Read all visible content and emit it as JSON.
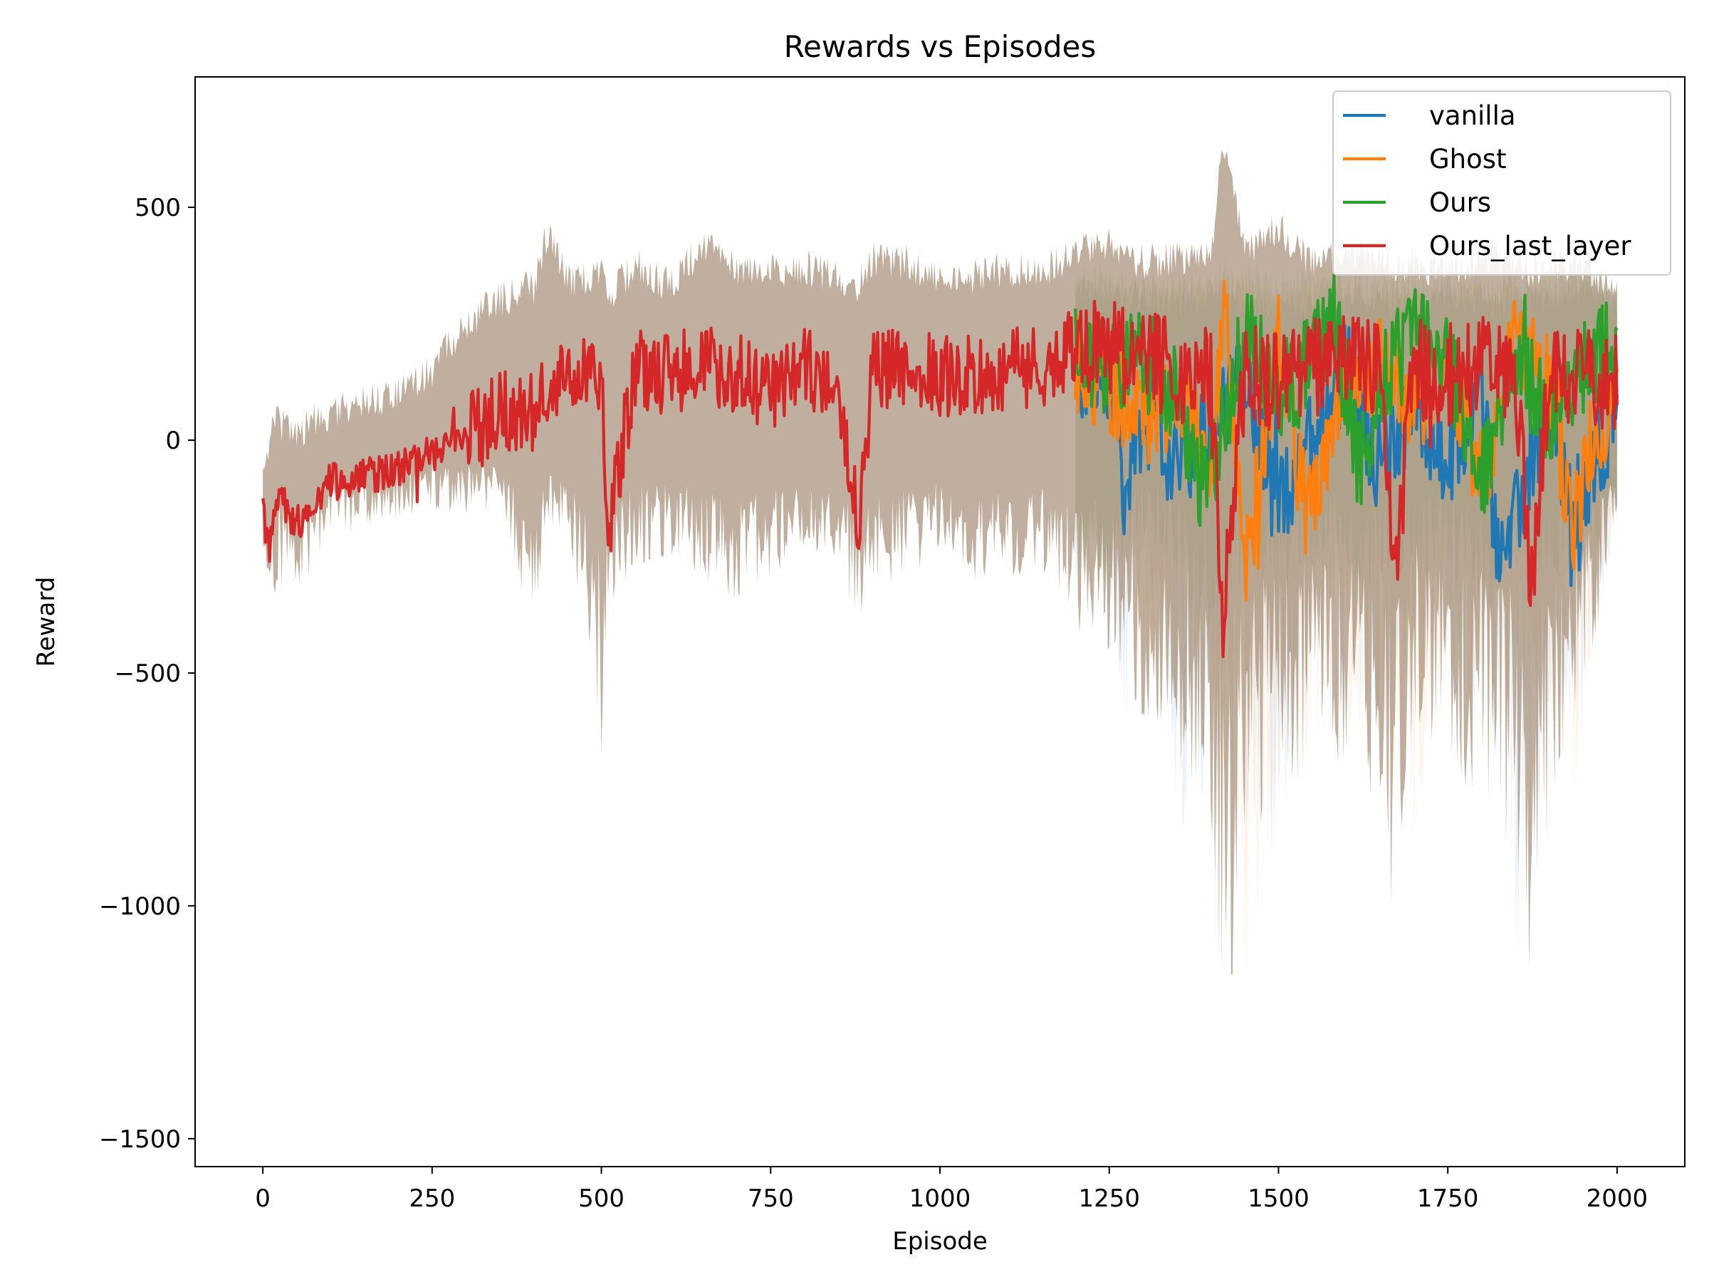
{
  "chart_data": {
    "type": "line",
    "title": "Rewards vs Episodes",
    "xlabel": "Episode",
    "ylabel": "Reward",
    "xlim": [
      -100,
      2100
    ],
    "ylim": [
      -1560,
      780
    ],
    "xticks": [
      0,
      250,
      500,
      750,
      1000,
      1250,
      1500,
      1750,
      2000
    ],
    "xtick_labels": [
      "0",
      "250",
      "500",
      "750",
      "1000",
      "1250",
      "1500",
      "1750",
      "2000"
    ],
    "yticks": [
      500,
      0,
      -500,
      -1000,
      -1500
    ],
    "ytick_labels": [
      "500",
      "0",
      "−500",
      "−1000",
      "−1500"
    ],
    "grid": false,
    "legend_position": "top-right",
    "series": [
      {
        "name": "vanilla",
        "color": "#1f77b4",
        "x": [
          1200,
          1260,
          1270,
          1300,
          1350,
          1400,
          1450,
          1500,
          1550,
          1600,
          1650,
          1700,
          1750,
          1800,
          1820,
          1840,
          1860,
          1900,
          1940,
          1960,
          2000
        ],
        "mean": [
          140,
          110,
          -130,
          60,
          -60,
          30,
          120,
          -150,
          20,
          160,
          -60,
          90,
          -80,
          130,
          -190,
          -240,
          -120,
          100,
          -220,
          -50,
          60
        ],
        "band_low": [
          -300,
          -400,
          -740,
          -300,
          -800,
          -1000,
          -900,
          -900,
          -500,
          -600,
          -700,
          -500,
          -600,
          -700,
          -800,
          -900,
          -1250,
          -600,
          -800,
          -500,
          -200
        ],
        "band_high": [
          320,
          330,
          300,
          310,
          300,
          320,
          290,
          280,
          300,
          310,
          300,
          290,
          320,
          300,
          290,
          310,
          300,
          300,
          320,
          340,
          300
        ]
      },
      {
        "name": "Ghost",
        "color": "#ff7f0e",
        "x": [
          1200,
          1250,
          1300,
          1350,
          1400,
          1420,
          1450,
          1500,
          1540,
          1600,
          1650,
          1700,
          1750,
          1800,
          1850,
          1900,
          1935,
          1960,
          2000
        ],
        "mean": [
          170,
          120,
          40,
          100,
          -40,
          280,
          -300,
          210,
          -160,
          80,
          170,
          60,
          140,
          -80,
          200,
          130,
          -210,
          -20,
          90
        ],
        "band_low": [
          -300,
          -350,
          -500,
          -600,
          -700,
          -1100,
          -1200,
          -800,
          -700,
          -600,
          -700,
          -900,
          -500,
          -700,
          -700,
          -600,
          -800,
          -500,
          -200
        ],
        "band_high": [
          330,
          320,
          330,
          310,
          340,
          360,
          320,
          300,
          330,
          330,
          320,
          300,
          310,
          320,
          340,
          300,
          320,
          330,
          300
        ]
      },
      {
        "name": "Ours",
        "color": "#2ca02c",
        "x": [
          1200,
          1250,
          1300,
          1350,
          1390,
          1420,
          1450,
          1500,
          1550,
          1580,
          1620,
          1650,
          1700,
          1750,
          1800,
          1850,
          1900,
          1950,
          2000
        ],
        "mean": [
          200,
          150,
          180,
          90,
          -120,
          40,
          230,
          100,
          160,
          280,
          -60,
          120,
          220,
          190,
          -90,
          160,
          50,
          140,
          220
        ],
        "band_low": [
          -300,
          -350,
          -200,
          -300,
          -500,
          -400,
          -300,
          -350,
          -300,
          -250,
          -350,
          -300,
          -350,
          -300,
          -400,
          -350,
          -300,
          -300,
          -150
        ],
        "band_high": [
          330,
          340,
          320,
          330,
          320,
          330,
          350,
          340,
          330,
          340,
          330,
          320,
          340,
          330,
          320,
          330,
          330,
          340,
          320
        ]
      },
      {
        "name": "Ours_last_layer",
        "color": "#d62728",
        "x": [
          0,
          10,
          20,
          50,
          100,
          150,
          200,
          250,
          300,
          350,
          400,
          420,
          450,
          500,
          510,
          550,
          600,
          650,
          700,
          750,
          800,
          850,
          880,
          900,
          950,
          1000,
          1050,
          1100,
          1150,
          1200,
          1250,
          1300,
          1350,
          1400,
          1418,
          1450,
          1500,
          1550,
          1600,
          1650,
          1670,
          1700,
          1750,
          1800,
          1850,
          1875,
          1900,
          1950,
          2000
        ],
        "mean": [
          -160,
          -250,
          -120,
          -180,
          -90,
          -80,
          -60,
          -30,
          10,
          60,
          60,
          100,
          140,
          120,
          -200,
          160,
          140,
          170,
          140,
          110,
          150,
          140,
          -200,
          160,
          150,
          140,
          140,
          150,
          160,
          190,
          200,
          170,
          150,
          130,
          -400,
          140,
          120,
          150,
          160,
          140,
          -310,
          150,
          140,
          160,
          150,
          -340,
          150,
          140,
          120
        ],
        "band_low": [
          -380,
          -400,
          -320,
          -350,
          -200,
          -200,
          -170,
          -150,
          -160,
          -150,
          -420,
          -200,
          -180,
          -680,
          -400,
          -280,
          -250,
          -300,
          -350,
          -300,
          -250,
          -300,
          -430,
          -350,
          -300,
          -250,
          -300,
          -300,
          -280,
          -400,
          -500,
          -600,
          -700,
          -800,
          -1350,
          -900,
          -800,
          -700,
          -700,
          -800,
          -1050,
          -600,
          -700,
          -800,
          -900,
          -1250,
          -800,
          -600,
          -150
        ],
        "band_high": [
          -40,
          0,
          40,
          20,
          60,
          80,
          100,
          150,
          250,
          300,
          330,
          450,
          340,
          350,
          300,
          380,
          330,
          420,
          370,
          360,
          370,
          350,
          330,
          390,
          380,
          350,
          350,
          370,
          360,
          400,
          420,
          380,
          390,
          400,
          640,
          400,
          460,
          380,
          390,
          400,
          370,
          380,
          360,
          400,
          380,
          360,
          370,
          380,
          320
        ]
      }
    ]
  }
}
